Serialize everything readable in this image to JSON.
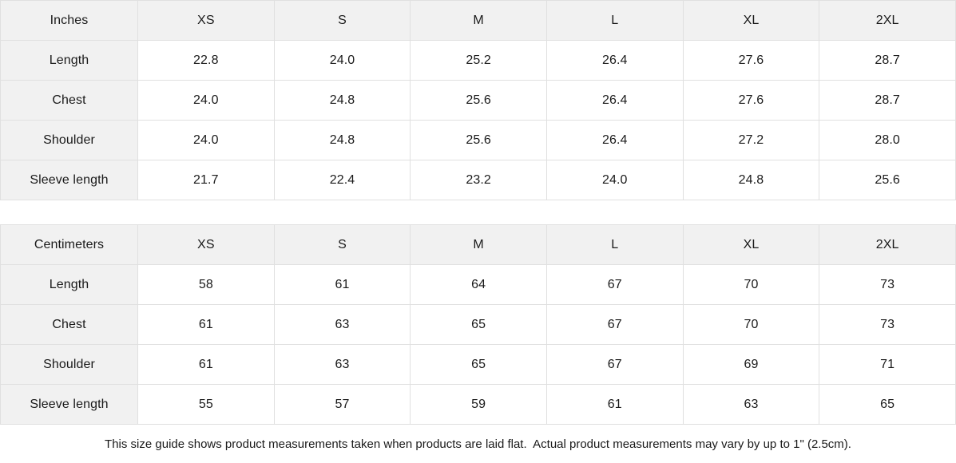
{
  "page": {
    "footer_note": "This size guide shows product measurements taken when products are laid flat.  Actual product measurements may vary by up to 1\" (2.5cm)."
  },
  "colors": {
    "header_bg": "#f1f1f1",
    "border": "#e0e0e0",
    "text": "#1a1a1a",
    "page_bg": "#ffffff"
  },
  "chart_data": [
    {
      "type": "table",
      "title": "Inches",
      "columns": [
        "XS",
        "S",
        "M",
        "L",
        "XL",
        "2XL"
      ],
      "row_labels": [
        "Length",
        "Chest",
        "Shoulder",
        "Sleeve length"
      ],
      "rows": [
        [
          "22.8",
          "24.0",
          "25.2",
          "26.4",
          "27.6",
          "28.7"
        ],
        [
          "24.0",
          "24.8",
          "25.6",
          "26.4",
          "27.6",
          "28.7"
        ],
        [
          "24.0",
          "24.8",
          "25.6",
          "26.4",
          "27.2",
          "28.0"
        ],
        [
          "21.7",
          "22.4",
          "23.2",
          "24.0",
          "24.8",
          "25.6"
        ]
      ]
    },
    {
      "type": "table",
      "title": "Centimeters",
      "columns": [
        "XS",
        "S",
        "M",
        "L",
        "XL",
        "2XL"
      ],
      "row_labels": [
        "Length",
        "Chest",
        "Shoulder",
        "Sleeve length"
      ],
      "rows": [
        [
          "58",
          "61",
          "64",
          "67",
          "70",
          "73"
        ],
        [
          "61",
          "63",
          "65",
          "67",
          "70",
          "73"
        ],
        [
          "61",
          "63",
          "65",
          "67",
          "69",
          "71"
        ],
        [
          "55",
          "57",
          "59",
          "61",
          "63",
          "65"
        ]
      ]
    }
  ]
}
